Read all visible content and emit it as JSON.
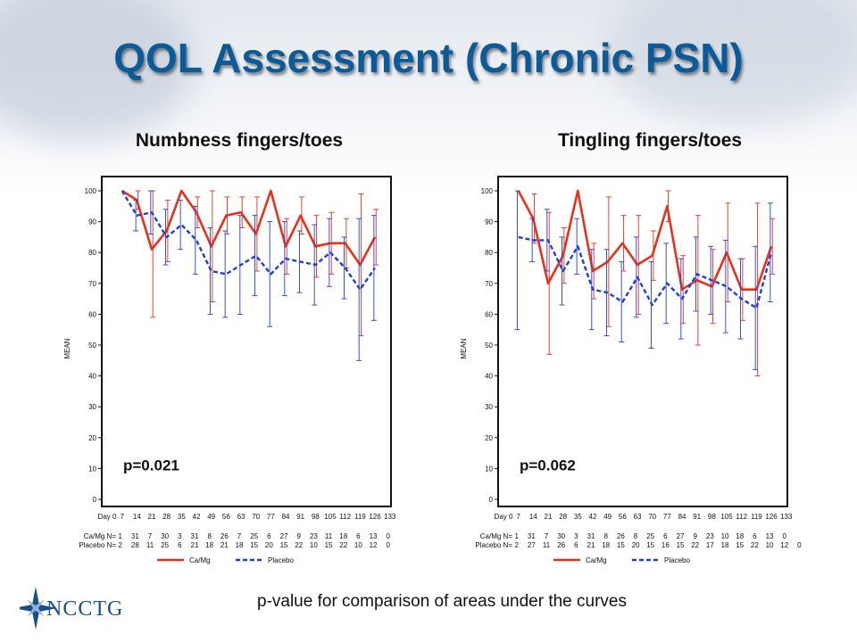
{
  "slide": {
    "title": "QOL Assessment (Chronic PSN)",
    "footnote": "p-value for comparison of areas under the curves",
    "logo_text": "NCCTG"
  },
  "colors": {
    "camg": "#e8301a",
    "placebo": "#1f3fd6",
    "title": "#0b5a9a"
  },
  "chart_data": [
    {
      "type": "line",
      "title": "Numbness fingers/toes",
      "ylabel": "MEAN",
      "ylim": [
        0,
        100
      ],
      "yticks": [
        0,
        10,
        20,
        30,
        40,
        50,
        60,
        70,
        80,
        90,
        100
      ],
      "x": [
        "Day 0",
        "7",
        "14",
        "21",
        "28",
        "35",
        "42",
        "49",
        "56",
        "63",
        "70",
        "77",
        "84",
        "91",
        "98",
        "105",
        "112",
        "119",
        "126",
        "133"
      ],
      "annotation": "p=0.021",
      "series": [
        {
          "name": "Ca/Mg",
          "style": "solid",
          "values": [
            null,
            100,
            97,
            81,
            87,
            100,
            93,
            82,
            92,
            93,
            86,
            100,
            82,
            92,
            82,
            83,
            83,
            76,
            85,
            null
          ],
          "err": [
            null,
            0,
            3,
            22,
            10,
            0,
            5,
            18,
            6,
            5,
            12,
            0,
            9,
            6,
            10,
            10,
            8,
            23,
            9,
            null
          ],
          "n": [
            "1",
            "31",
            "7",
            "30",
            "3",
            "31",
            "8",
            "26",
            "7",
            "25",
            "6",
            "27",
            "9",
            "23",
            "11",
            "18",
            "6",
            "13",
            "0",
            ""
          ]
        },
        {
          "name": "Placebo",
          "style": "dashed",
          "values": [
            null,
            100,
            92,
            93,
            85,
            89,
            84,
            74,
            73,
            76,
            79,
            73,
            78,
            77,
            76,
            80,
            75,
            68,
            75,
            null
          ],
          "err": [
            null,
            0,
            5,
            7,
            9,
            8,
            11,
            14,
            14,
            16,
            13,
            17,
            12,
            10,
            13,
            11,
            10,
            23,
            17,
            null
          ],
          "n": [
            "2",
            "28",
            "11",
            "25",
            "6",
            "21",
            "18",
            "21",
            "18",
            "15",
            "20",
            "15",
            "22",
            "10",
            "15",
            "22",
            "10",
            "12",
            "0",
            ""
          ]
        }
      ],
      "n_labels": [
        "Ca/Mg N=",
        "Placebo N="
      ]
    },
    {
      "type": "line",
      "title": "Tingling fingers/toes",
      "ylabel": "MEAN",
      "ylim": [
        0,
        100
      ],
      "yticks": [
        0,
        10,
        20,
        30,
        40,
        50,
        60,
        70,
        80,
        90,
        100
      ],
      "x": [
        "Day 0",
        "7",
        "14",
        "21",
        "28",
        "35",
        "42",
        "49",
        "56",
        "63",
        "70",
        "77",
        "84",
        "91",
        "98",
        "105",
        "112",
        "119",
        "126",
        "133"
      ],
      "annotation": "p=0.062",
      "series": [
        {
          "name": "Ca/Mg",
          "style": "solid",
          "values": [
            null,
            100,
            91,
            70,
            79,
            100,
            74,
            77,
            83,
            76,
            79,
            95,
            68,
            71,
            69,
            80,
            68,
            68,
            82,
            null
          ],
          "err": [
            null,
            0,
            8,
            23,
            9,
            0,
            9,
            21,
            9,
            16,
            8,
            5,
            11,
            21,
            12,
            16,
            10,
            28,
            9,
            null
          ],
          "n": [
            "1",
            "31",
            "7",
            "30",
            "3",
            "31",
            "8",
            "26",
            "8",
            "25",
            "6",
            "27",
            "9",
            "23",
            "10",
            "18",
            "6",
            "13",
            "0",
            ""
          ]
        },
        {
          "name": "Placebo",
          "style": "dashed",
          "values": [
            null,
            85,
            84,
            84,
            74,
            82,
            68,
            67,
            64,
            72,
            63,
            70,
            65,
            73,
            71,
            69,
            65,
            62,
            80,
            null
          ],
          "err": [
            null,
            30,
            7,
            10,
            11,
            9,
            13,
            14,
            13,
            13,
            14,
            13,
            13,
            12,
            11,
            15,
            13,
            20,
            16,
            null
          ],
          "n": [
            "2",
            "27",
            "11",
            "26",
            "6",
            "21",
            "18",
            "15",
            "20",
            "15",
            "16",
            "15",
            "22",
            "17",
            "18",
            "15",
            "22",
            "10",
            "12",
            "0"
          ]
        }
      ],
      "n_labels": [
        "Ca/Mg N=",
        "Placebo N="
      ]
    }
  ]
}
